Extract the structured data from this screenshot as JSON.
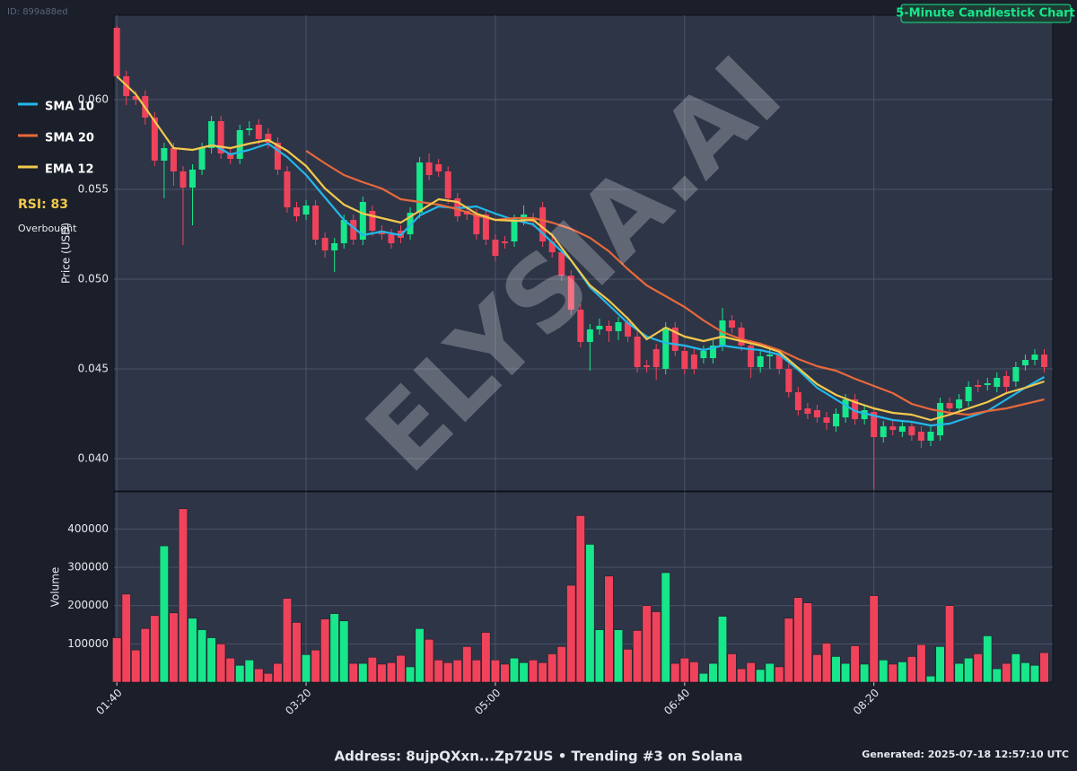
{
  "page": {
    "id": "ID: 899a88ed",
    "address": "Address: 8ujpQXxn...Zp72US • Trending #3 on Solana",
    "generated": "Generated: 2025-07-18 12:57:10 UTC",
    "watermark": "ELYSIA.AI",
    "rsi": "RSI: 83",
    "rsi_status": "Overbought"
  },
  "chart_data": [
    {
      "type": "candlestick",
      "title": "5-Minute Candlestick Chart",
      "ylabel": "Price (USD)",
      "up_color": "#17e68a",
      "down_color": "#f0435b",
      "grid": true,
      "xlim": [
        -0.3,
        98.9
      ],
      "ylim": [
        0.0382,
        0.0647
      ],
      "yticks": [
        {
          "value": 0.04,
          "label": "0.040"
        },
        0.045,
        {
          "value": 0.05,
          "label": "0.050"
        },
        0.055,
        {
          "value": 0.06,
          "label": "0.060"
        }
      ],
      "open": [
        0.064,
        0.0613,
        0.0602,
        0.0602,
        0.059,
        0.0566,
        0.0573,
        0.056,
        0.0551,
        0.0561,
        0.0573,
        0.0588,
        0.057,
        0.0567,
        0.0583,
        0.0586,
        0.0581,
        0.0576,
        0.056,
        0.054,
        0.0536,
        0.0541,
        0.0523,
        0.0516,
        0.052,
        0.0533,
        0.0522,
        0.0538,
        0.0527,
        0.0525,
        0.0527,
        0.0525,
        0.0537,
        0.0565,
        0.0564,
        0.056,
        0.0545,
        0.0538,
        0.0536,
        0.0536,
        0.0522,
        0.0521,
        0.0521,
        0.0533,
        0.0534,
        0.054,
        0.0521,
        0.0515,
        0.0502,
        0.0483,
        0.0465,
        0.0472,
        0.0474,
        0.0471,
        0.0476,
        0.0468,
        0.0452,
        0.0461,
        0.045,
        0.0473,
        0.046,
        0.0458,
        0.0456,
        0.0456,
        0.0463,
        0.0477,
        0.0473,
        0.0463,
        0.0451,
        0.0457,
        0.0458,
        0.045,
        0.0437,
        0.0428,
        0.0427,
        0.0423,
        0.0418,
        0.0423,
        0.0433,
        0.0422,
        0.0426,
        0.0412,
        0.0418,
        0.0415,
        0.0418,
        0.0415,
        0.041,
        0.0413,
        0.0431,
        0.0428,
        0.0432,
        0.0441,
        0.0441,
        0.044,
        0.0446,
        0.0443,
        0.0452,
        0.0455,
        0.0458
      ],
      "high": [
        0.0641,
        0.0616,
        0.0605,
        0.0605,
        0.0593,
        0.0576,
        0.0576,
        0.0563,
        0.0564,
        0.0576,
        0.0591,
        0.0591,
        0.0573,
        0.0586,
        0.0588,
        0.0589,
        0.0584,
        0.0579,
        0.0563,
        0.0543,
        0.0544,
        0.0544,
        0.0526,
        0.0523,
        0.0536,
        0.0536,
        0.0546,
        0.0541,
        0.053,
        0.0528,
        0.053,
        0.054,
        0.0568,
        0.057,
        0.0567,
        0.0563,
        0.0548,
        0.0541,
        0.0539,
        0.0539,
        0.0525,
        0.0524,
        0.0536,
        0.0541,
        0.0537,
        0.0543,
        0.0524,
        0.0518,
        0.0505,
        0.0486,
        0.0475,
        0.0478,
        0.0477,
        0.0479,
        0.0479,
        0.0471,
        0.0455,
        0.0464,
        0.0476,
        0.0476,
        0.0463,
        0.0461,
        0.0463,
        0.0466,
        0.0484,
        0.048,
        0.0476,
        0.0466,
        0.046,
        0.0461,
        0.0461,
        0.0453,
        0.044,
        0.0431,
        0.043,
        0.0426,
        0.0428,
        0.0436,
        0.0436,
        0.043,
        0.0429,
        0.0421,
        0.0421,
        0.0421,
        0.0421,
        0.0418,
        0.0418,
        0.0434,
        0.0434,
        0.0436,
        0.0443,
        0.0444,
        0.0445,
        0.0448,
        0.0449,
        0.0454,
        0.0458,
        0.0461,
        0.0461
      ],
      "low": [
        0.0613,
        0.0597,
        0.0597,
        0.0586,
        0.0563,
        0.0545,
        0.0552,
        0.0519,
        0.053,
        0.0558,
        0.057,
        0.0567,
        0.0564,
        0.0564,
        0.058,
        0.0575,
        0.0573,
        0.0558,
        0.0537,
        0.0532,
        0.0533,
        0.0519,
        0.0512,
        0.0504,
        0.0517,
        0.0519,
        0.0519,
        0.0524,
        0.0522,
        0.0517,
        0.052,
        0.0522,
        0.0534,
        0.0555,
        0.0557,
        0.0542,
        0.0532,
        0.0533,
        0.0522,
        0.0519,
        0.051,
        0.0517,
        0.0518,
        0.053,
        0.0529,
        0.0518,
        0.0512,
        0.0499,
        0.048,
        0.0462,
        0.0449,
        0.0469,
        0.0465,
        0.0466,
        0.0465,
        0.0448,
        0.0448,
        0.0444,
        0.0447,
        0.0457,
        0.0447,
        0.0447,
        0.0453,
        0.0453,
        0.046,
        0.047,
        0.046,
        0.0445,
        0.0448,
        0.045,
        0.0447,
        0.0434,
        0.0424,
        0.0422,
        0.042,
        0.0416,
        0.0415,
        0.042,
        0.0419,
        0.0419,
        0.0383,
        0.0409,
        0.0413,
        0.0412,
        0.041,
        0.0406,
        0.0407,
        0.041,
        0.0425,
        0.0425,
        0.0429,
        0.0437,
        0.0438,
        0.0437,
        0.0437,
        0.044,
        0.0449,
        0.0452,
        0.0448
      ],
      "close": [
        0.0613,
        0.0602,
        0.06,
        0.059,
        0.0566,
        0.0573,
        0.056,
        0.0551,
        0.0561,
        0.0573,
        0.0588,
        0.057,
        0.0567,
        0.0583,
        0.0584,
        0.0578,
        0.0576,
        0.0561,
        0.054,
        0.0535,
        0.0541,
        0.0522,
        0.0516,
        0.052,
        0.0533,
        0.0522,
        0.0543,
        0.0527,
        0.0525,
        0.052,
        0.0523,
        0.0537,
        0.0565,
        0.0558,
        0.056,
        0.0545,
        0.0535,
        0.0536,
        0.0525,
        0.0522,
        0.0513,
        0.052,
        0.0533,
        0.0536,
        0.0532,
        0.0521,
        0.0515,
        0.0502,
        0.0483,
        0.0465,
        0.0472,
        0.0474,
        0.0471,
        0.0476,
        0.0468,
        0.0451,
        0.0451,
        0.0451,
        0.0473,
        0.046,
        0.045,
        0.045,
        0.046,
        0.0463,
        0.0477,
        0.0473,
        0.0463,
        0.0451,
        0.0457,
        0.0458,
        0.045,
        0.0437,
        0.0427,
        0.0425,
        0.0423,
        0.042,
        0.0425,
        0.0433,
        0.0422,
        0.0427,
        0.0412,
        0.0418,
        0.0416,
        0.0418,
        0.0413,
        0.041,
        0.0415,
        0.0431,
        0.0428,
        0.0433,
        0.044,
        0.044,
        0.0442,
        0.0445,
        0.044,
        0.0451,
        0.0455,
        0.0458,
        0.0451
      ],
      "series": [
        {
          "name": "SMA 10",
          "color": "#22b8ea",
          "x": [
            10,
            12,
            14,
            16,
            18,
            20,
            22,
            24,
            26,
            28,
            30,
            32,
            34,
            36,
            38,
            40,
            42,
            44,
            46,
            48,
            50,
            52,
            54,
            56,
            58,
            60,
            62,
            64,
            66,
            68,
            70,
            72,
            74,
            76,
            78,
            80,
            82,
            84,
            86,
            88,
            90,
            92,
            94,
            96,
            98
          ],
          "values": [
            0.05755,
            0.05695,
            0.0572,
            0.05755,
            0.0568,
            0.0558,
            0.05455,
            0.0533,
            0.05245,
            0.05265,
            0.05245,
            0.05355,
            0.05405,
            0.05395,
            0.05405,
            0.05365,
            0.0533,
            0.05305,
            0.05205,
            0.05105,
            0.04955,
            0.04855,
            0.04755,
            0.0468,
            0.04645,
            0.0463,
            0.04605,
            0.0463,
            0.04615,
            0.04605,
            0.0458,
            0.04495,
            0.04395,
            0.0433,
            0.04265,
            0.0424,
            0.04215,
            0.04205,
            0.04185,
            0.04195,
            0.0423,
            0.04265,
            0.0433,
            0.04395,
            0.04455
          ]
        },
        {
          "name": "SMA 20",
          "color": "#e8693a",
          "x": [
            20,
            22,
            24,
            26,
            28,
            30,
            32,
            34,
            36,
            38,
            40,
            42,
            44,
            46,
            48,
            50,
            52,
            54,
            56,
            58,
            60,
            62,
            64,
            66,
            68,
            70,
            72,
            74,
            76,
            78,
            80,
            82,
            84,
            86,
            88,
            90,
            92,
            94,
            96,
            98
          ],
          "values": [
            0.05715,
            0.05645,
            0.0558,
            0.0554,
            0.05505,
            0.05445,
            0.0543,
            0.05415,
            0.0539,
            0.05355,
            0.0533,
            0.0534,
            0.0534,
            0.05315,
            0.0528,
            0.0523,
            0.05155,
            0.05055,
            0.04965,
            0.04905,
            0.04845,
            0.0477,
            0.04705,
            0.04665,
            0.0464,
            0.04605,
            0.04555,
            0.04515,
            0.0449,
            0.04445,
            0.04405,
            0.04365,
            0.04305,
            0.04275,
            0.04255,
            0.04245,
            0.04265,
            0.0428,
            0.04305,
            0.0433
          ]
        },
        {
          "name": "EMA 12",
          "color": "#f2c94c",
          "x": [
            0,
            2,
            4,
            6,
            8,
            10,
            12,
            14,
            16,
            18,
            20,
            22,
            24,
            26,
            28,
            30,
            32,
            34,
            36,
            38,
            40,
            42,
            44,
            46,
            48,
            50,
            52,
            54,
            56,
            58,
            60,
            62,
            64,
            66,
            68,
            70,
            72,
            74,
            76,
            78,
            80,
            82,
            84,
            86,
            88,
            90,
            92,
            94,
            96,
            98
          ],
          "values": [
            0.0613,
            0.0603,
            0.0588,
            0.0573,
            0.0572,
            0.05745,
            0.0573,
            0.05755,
            0.05775,
            0.05715,
            0.0563,
            0.05505,
            0.05415,
            0.05365,
            0.0534,
            0.05315,
            0.0538,
            0.05445,
            0.0543,
            0.05365,
            0.0533,
            0.05325,
            0.0533,
            0.05245,
            0.05105,
            0.04965,
            0.0488,
            0.0478,
            0.04665,
            0.0473,
            0.0468,
            0.04655,
            0.0468,
            0.04655,
            0.0463,
            0.04595,
            0.04505,
            0.04415,
            0.04355,
            0.04315,
            0.0428,
            0.04255,
            0.04245,
            0.04215,
            0.04245,
            0.0428,
            0.04315,
            0.04365,
            0.04395,
            0.0443
          ]
        }
      ]
    },
    {
      "type": "bar",
      "ylabel": "Volume",
      "grid": true,
      "xlim": [
        -0.3,
        98.9
      ],
      "xticks": [
        {
          "value": 0,
          "label": "01:40"
        },
        {
          "value": 20,
          "label": "03:20"
        },
        {
          "value": 40,
          "label": "05:00"
        },
        {
          "value": 60,
          "label": "06:40"
        },
        {
          "value": 80,
          "label": "08:20"
        }
      ],
      "ylim": [
        0,
        497000
      ],
      "yticks": [
        100000,
        200000,
        300000,
        400000
      ],
      "values": [
        116000,
        230000,
        84000,
        140000,
        174000,
        356000,
        181000,
        453000,
        167000,
        137000,
        116000,
        100000,
        63000,
        44000,
        58000,
        35000,
        23000,
        49000,
        219000,
        156000,
        72000,
        84000,
        165000,
        179000,
        160000,
        49000,
        49000,
        65000,
        47000,
        51000,
        70000,
        40000,
        140000,
        112000,
        58000,
        51000,
        58000,
        93000,
        58000,
        130000,
        58000,
        47000,
        63000,
        51000,
        58000,
        51000,
        74000,
        93000,
        253000,
        435000,
        360000,
        137000,
        277000,
        137000,
        86000,
        135000,
        200000,
        184000,
        286000,
        49000,
        63000,
        53000,
        23000,
        49000,
        172000,
        74000,
        35000,
        51000,
        33000,
        49000,
        40000,
        167000,
        221000,
        207000,
        72000,
        102000,
        67000,
        49000,
        95000,
        47000,
        226000,
        58000,
        47000,
        53000,
        67000,
        98000,
        16000,
        93000,
        200000,
        49000,
        63000,
        74000,
        121000,
        35000,
        49000,
        74000,
        51000,
        44000,
        77000
      ]
    }
  ]
}
